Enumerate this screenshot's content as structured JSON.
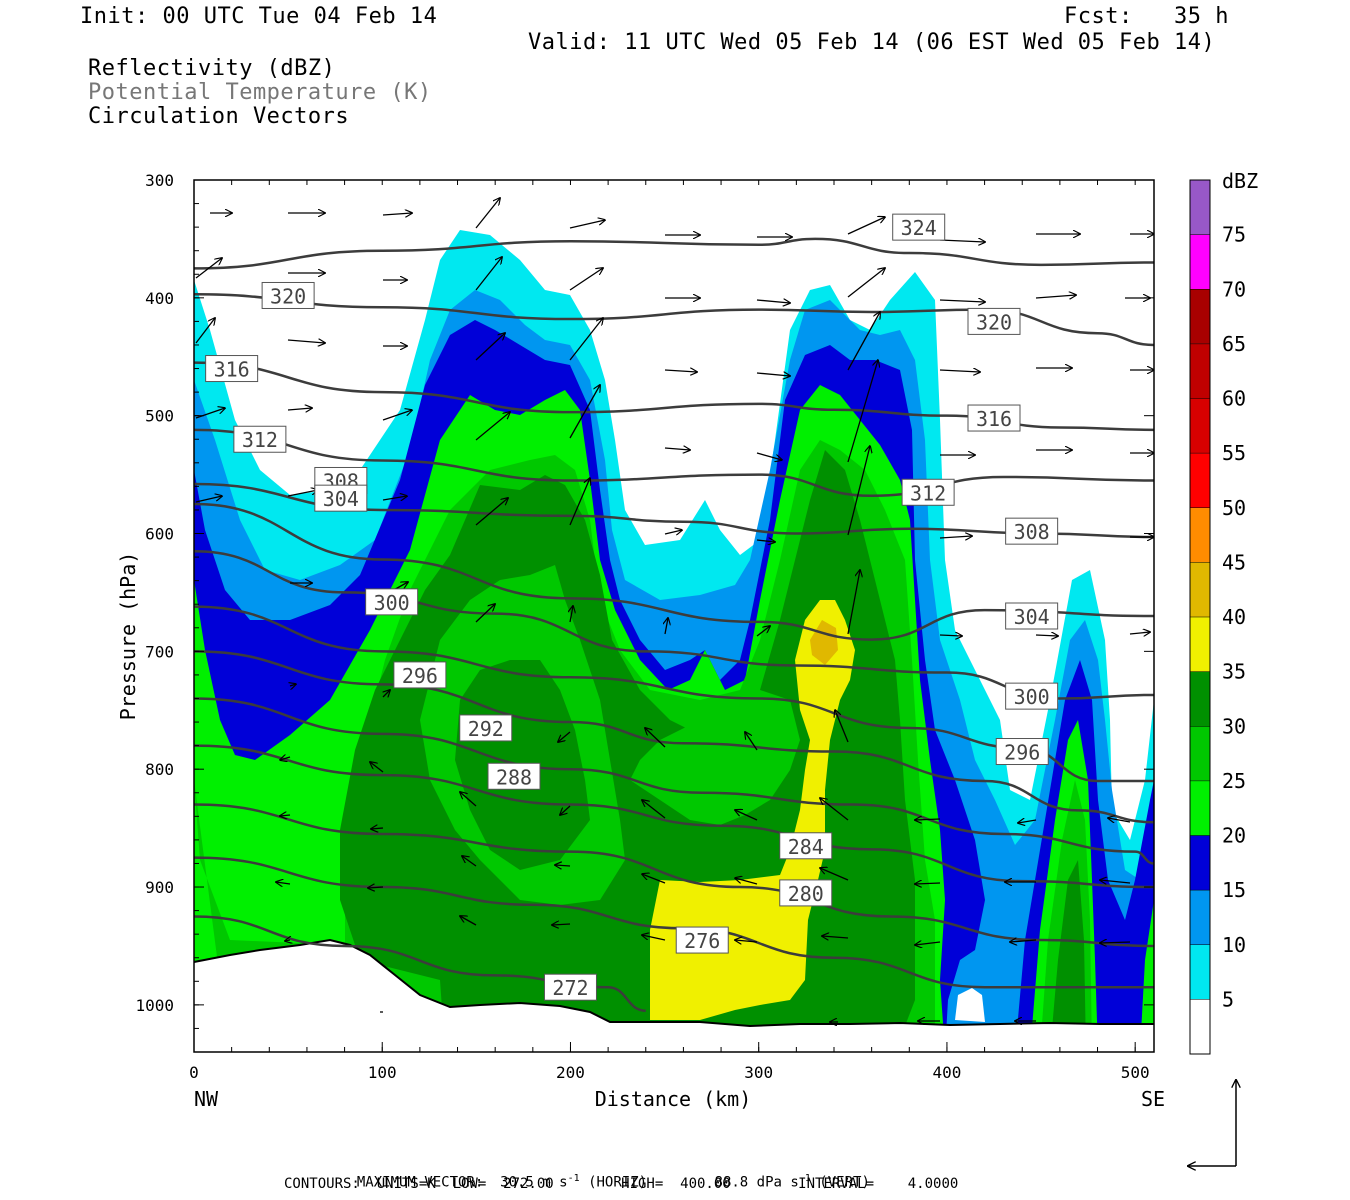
{
  "header": {
    "init": "Init: 00 UTC Tue 04 Feb 14",
    "fcst": "Fcst:   35 h",
    "valid": "Valid: 11 UTC Wed 05 Feb 14 (06 EST Wed 05 Feb 14)",
    "field1": "Reflectivity (dBZ)",
    "field2": "Potential Temperature (K)",
    "field3": "Circulation Vectors"
  },
  "footer": {
    "max_vector": "MAXIMUM VECTOR:  30.5 m s",
    "horiz": "(HORIZ)",
    "vert_val": "88.8 dPa s",
    "vert": "(VERT)",
    "neg1": "-1",
    "neg1b": "-1",
    "contours": "CONTOURS:  UNITS=K  LOW=  272.00        HIGH=  400.00        INTERVAL=    4.0000"
  },
  "colors": {
    "c5": "#00e8f0",
    "c10": "#0096f0",
    "c15": "#0000d8",
    "c20": "#00f000",
    "c25": "#00c800",
    "c30": "#009000",
    "c35": "#f0f000",
    "c40": "#e0b800",
    "c45": "#ff8c00",
    "c50": "#ff0000",
    "c55": "#d80000",
    "c60": "#c00000",
    "c65": "#a80000",
    "c70": "#ff00ff",
    "c75": "#9858c8",
    "contour": "#3c3c3c"
  },
  "chart_data": {
    "type": "heatmap",
    "title": "Reflectivity (dBZ) / Potential Temperature (K) / Circulation Vectors",
    "xlabel": "Distance (km)",
    "ylabel": "Pressure (hPa)",
    "xlim": [
      0,
      510
    ],
    "ylim": [
      1040,
      300
    ],
    "x_ticks": [
      0,
      100,
      200,
      300,
      400,
      500
    ],
    "y_ticks": [
      300,
      400,
      500,
      600,
      700,
      800,
      900,
      1000
    ],
    "x_end_labels": [
      "NW",
      "SE"
    ],
    "colorbar": {
      "unit": "dBZ",
      "levels": [
        5,
        10,
        15,
        20,
        25,
        30,
        35,
        40,
        45,
        50,
        55,
        60,
        65,
        70,
        75
      ]
    },
    "theta_contours": [
      {
        "label": "324",
        "points": [
          [
            0,
            375
          ],
          [
            100,
            360
          ],
          [
            200,
            352
          ],
          [
            300,
            355
          ],
          [
            330,
            350
          ],
          [
            380,
            362
          ],
          [
            450,
            372
          ],
          [
            510,
            370
          ]
        ]
      },
      {
        "label": "320",
        "points": [
          [
            0,
            397
          ],
          [
            100,
            408
          ],
          [
            200,
            418
          ],
          [
            300,
            410
          ],
          [
            360,
            412
          ],
          [
            420,
            410
          ],
          [
            480,
            430
          ],
          [
            510,
            440
          ]
        ]
      },
      {
        "label": "316",
        "points": [
          [
            0,
            455
          ],
          [
            100,
            480
          ],
          [
            200,
            497
          ],
          [
            300,
            490
          ],
          [
            340,
            495
          ],
          [
            400,
            500
          ],
          [
            460,
            510
          ],
          [
            510,
            512
          ]
        ]
      },
      {
        "label": "312",
        "points": [
          [
            0,
            512
          ],
          [
            100,
            538
          ],
          [
            200,
            555
          ],
          [
            300,
            550
          ],
          [
            360,
            568
          ],
          [
            430,
            552
          ],
          [
            510,
            555
          ]
        ]
      },
      {
        "label": "308",
        "points": [
          [
            0,
            558
          ],
          [
            100,
            580
          ],
          [
            200,
            585
          ],
          [
            260,
            590
          ],
          [
            320,
            600
          ],
          [
            380,
            596
          ],
          [
            450,
            600
          ],
          [
            510,
            603
          ]
        ]
      },
      {
        "label": "304",
        "points": [
          [
            0,
            575
          ],
          [
            100,
            622
          ],
          [
            200,
            655
          ],
          [
            300,
            675
          ],
          [
            360,
            690
          ],
          [
            420,
            665
          ],
          [
            510,
            670
          ]
        ]
      },
      {
        "label": "300",
        "points": [
          [
            0,
            615
          ],
          [
            80,
            650
          ],
          [
            160,
            668
          ],
          [
            240,
            700
          ],
          [
            320,
            712
          ],
          [
            400,
            718
          ],
          [
            460,
            740
          ],
          [
            510,
            737
          ]
        ]
      },
      {
        "label": "296",
        "points": [
          [
            0,
            662
          ],
          [
            100,
            700
          ],
          [
            200,
            722
          ],
          [
            300,
            740
          ],
          [
            380,
            765
          ],
          [
            440,
            782
          ],
          [
            480,
            810
          ],
          [
            510,
            810
          ]
        ]
      },
      {
        "label": "292",
        "points": [
          [
            0,
            700
          ],
          [
            100,
            728
          ],
          [
            200,
            760
          ],
          [
            260,
            778
          ],
          [
            340,
            785
          ],
          [
            420,
            810
          ],
          [
            470,
            835
          ],
          [
            510,
            845
          ]
        ]
      },
      {
        "label": "288",
        "points": [
          [
            0,
            740
          ],
          [
            100,
            770
          ],
          [
            200,
            800
          ],
          [
            270,
            820
          ],
          [
            350,
            830
          ],
          [
            430,
            855
          ],
          [
            500,
            870
          ],
          [
            510,
            880
          ]
        ]
      },
      {
        "label": "284",
        "points": [
          [
            0,
            780
          ],
          [
            100,
            805
          ],
          [
            200,
            830
          ],
          [
            280,
            848
          ],
          [
            360,
            868
          ],
          [
            440,
            895
          ],
          [
            510,
            900
          ]
        ]
      },
      {
        "label": "280",
        "points": [
          [
            0,
            830
          ],
          [
            100,
            855
          ],
          [
            200,
            870
          ],
          [
            290,
            900
          ],
          [
            370,
            925
          ],
          [
            450,
            945
          ],
          [
            510,
            950
          ]
        ]
      },
      {
        "label": "276",
        "points": [
          [
            0,
            875
          ],
          [
            100,
            900
          ],
          [
            180,
            915
          ],
          [
            260,
            935
          ],
          [
            340,
            960
          ],
          [
            420,
            985
          ],
          [
            510,
            985
          ]
        ]
      },
      {
        "label": "272",
        "points": [
          [
            0,
            925
          ],
          [
            80,
            950
          ],
          [
            160,
            975
          ],
          [
            220,
            985
          ],
          [
            240,
            1005
          ]
        ]
      }
    ]
  }
}
